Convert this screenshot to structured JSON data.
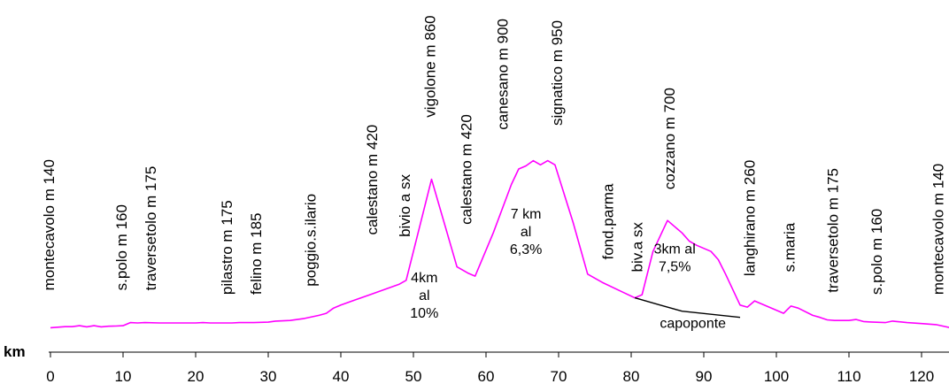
{
  "chart_data": {
    "type": "line",
    "xlabel": "km",
    "xlim": [
      0,
      124
    ],
    "xticks": [
      "0",
      "10",
      "20",
      "30",
      "40",
      "50",
      "60",
      "70",
      "80",
      "90",
      "100",
      "110",
      "120"
    ],
    "line_color": "#ff00ff",
    "series": [
      {
        "points": [
          [
            0,
            140
          ],
          [
            2,
            145
          ],
          [
            3,
            145
          ],
          [
            4,
            150
          ],
          [
            5,
            144
          ],
          [
            6,
            150
          ],
          [
            7,
            144
          ],
          [
            8,
            147
          ],
          [
            9,
            148
          ],
          [
            10,
            150
          ],
          [
            11,
            165
          ],
          [
            12,
            163
          ],
          [
            13,
            165
          ],
          [
            15,
            163
          ],
          [
            20,
            163
          ],
          [
            21,
            165
          ],
          [
            22,
            163
          ],
          [
            25,
            163
          ],
          [
            26,
            165
          ],
          [
            28,
            165
          ],
          [
            30,
            167
          ],
          [
            31,
            172
          ],
          [
            33,
            175
          ],
          [
            35,
            185
          ],
          [
            37,
            200
          ],
          [
            38,
            210
          ],
          [
            39,
            235
          ],
          [
            40,
            250
          ],
          [
            42,
            275
          ],
          [
            44,
            300
          ],
          [
            46,
            325
          ],
          [
            48,
            350
          ],
          [
            49,
            370
          ],
          [
            52.5,
            860
          ],
          [
            56,
            435
          ],
          [
            57.5,
            405
          ],
          [
            58.5,
            390
          ],
          [
            61,
            600
          ],
          [
            63.5,
            835
          ],
          [
            64.5,
            910
          ],
          [
            65.5,
            925
          ],
          [
            66.5,
            950
          ],
          [
            67.5,
            930
          ],
          [
            68.5,
            950
          ],
          [
            69.5,
            930
          ],
          [
            72,
            650
          ],
          [
            74,
            400
          ],
          [
            76,
            360
          ],
          [
            79,
            310
          ],
          [
            80.5,
            285
          ],
          [
            81.5,
            300
          ],
          [
            83,
            510
          ],
          [
            85,
            660
          ],
          [
            87,
            600
          ],
          [
            88,
            560
          ],
          [
            89,
            540
          ],
          [
            91,
            510
          ],
          [
            92,
            470
          ],
          [
            93,
            400
          ],
          [
            95,
            250
          ],
          [
            96,
            240
          ],
          [
            97,
            270
          ],
          [
            98,
            255
          ],
          [
            100,
            225
          ],
          [
            101,
            210
          ],
          [
            102,
            245
          ],
          [
            103,
            235
          ],
          [
            105,
            200
          ],
          [
            106,
            190
          ],
          [
            107,
            178
          ],
          [
            108,
            175
          ],
          [
            110,
            175
          ],
          [
            111,
            180
          ],
          [
            112,
            170
          ],
          [
            113,
            168
          ],
          [
            115,
            165
          ],
          [
            116,
            172
          ],
          [
            118,
            165
          ],
          [
            120,
            160
          ],
          [
            122,
            155
          ],
          [
            124,
            140
          ]
        ]
      },
      {
        "color": "#000000",
        "points": [
          [
            80.5,
            285
          ],
          [
            84,
            250
          ],
          [
            87,
            220
          ],
          [
            91,
            205
          ],
          [
            95,
            190
          ]
        ]
      }
    ],
    "place_labels": [
      {
        "text": "montecavolo m 140",
        "km": 0.5,
        "elev": 320
      },
      {
        "text": "s.polo  m 160",
        "km": 10.5,
        "elev": 320
      },
      {
        "text": "traversetolo  m 175",
        "km": 14.5,
        "elev": 320
      },
      {
        "text": "pilastro  m 175",
        "km": 25,
        "elev": 300
      },
      {
        "text": "felino m 185",
        "km": 29,
        "elev": 300
      },
      {
        "text": "poggio.s.ilario",
        "km": 36.5,
        "elev": 340
      },
      {
        "text": "calestano m 420",
        "km": 45,
        "elev": 590
      },
      {
        "text": "bivio a sx",
        "km": 49.5,
        "elev": 580
      },
      {
        "text": "vigolone m 860",
        "km": 53,
        "elev": 1160
      },
      {
        "text": "calestano m 420",
        "km": 58,
        "elev": 640
      },
      {
        "text": "canesano m 900",
        "km": 63,
        "elev": 1100
      },
      {
        "text": "signatico m 950",
        "km": 70.5,
        "elev": 1120
      },
      {
        "text": "fond.parma",
        "km": 77.5,
        "elev": 470
      },
      {
        "text": "biv.a sx",
        "km": 81.5,
        "elev": 410
      },
      {
        "text": "cozzano m 700",
        "km": 86,
        "elev": 810
      },
      {
        "text": "langhirano  m 260",
        "km": 97,
        "elev": 390
      },
      {
        "text": "s.maria",
        "km": 102.5,
        "elev": 410
      },
      {
        "text": "traversetolo  m 175",
        "km": 108.5,
        "elev": 310
      },
      {
        "text": "s.polo  m 160",
        "km": 114.5,
        "elev": 300
      },
      {
        "text": "montecavolo  m 140",
        "km": 123,
        "elev": 300
      }
    ],
    "annotations": [
      {
        "lines": [
          "4km",
          "al",
          "10%"
        ],
        "km": 51.5,
        "elev": 360
      },
      {
        "lines": [
          "7 km",
          "al",
          "6,3%"
        ],
        "km": 65.5,
        "elev": 670
      },
      {
        "lines": [
          "3km al",
          "7,5%"
        ],
        "km": 86,
        "elev": 500
      },
      {
        "lines": [
          "capoponte"
        ],
        "km": 88.5,
        "elev": 140
      }
    ]
  }
}
